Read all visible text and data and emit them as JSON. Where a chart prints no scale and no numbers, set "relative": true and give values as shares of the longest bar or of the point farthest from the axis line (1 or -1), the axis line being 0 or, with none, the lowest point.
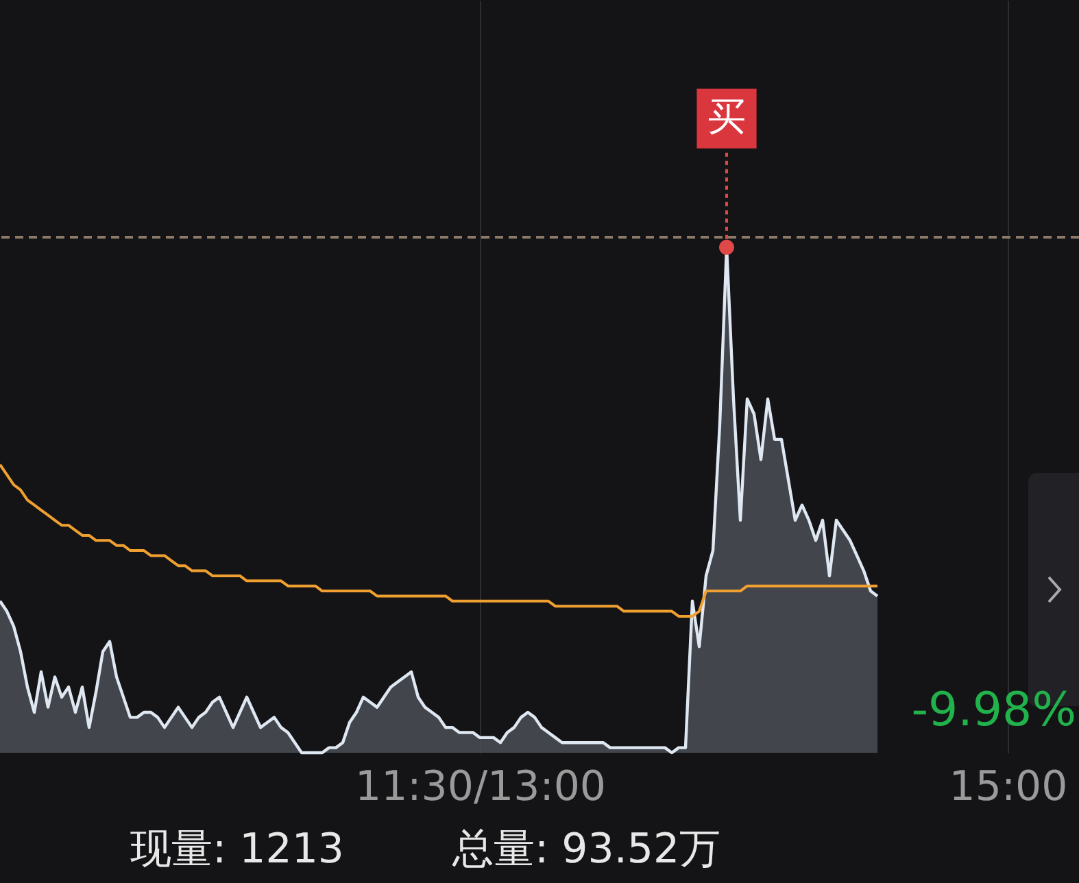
{
  "chart_data": {
    "type": "line",
    "relative": true,
    "grid": "x",
    "categories": [
      null,
      null,
      null,
      null,
      null,
      null,
      null,
      null,
      null,
      null,
      null,
      null,
      null,
      null,
      null,
      null,
      null,
      null,
      null,
      null,
      null,
      null,
      null,
      null,
      null,
      null,
      null,
      null,
      null,
      null,
      null,
      null,
      null,
      null,
      null,
      null,
      null,
      null,
      null,
      null,
      null,
      null,
      null,
      null,
      null,
      null,
      null,
      null,
      null,
      null,
      null,
      null,
      null,
      null,
      null,
      null,
      null,
      null,
      null,
      null,
      null,
      null,
      null,
      null,
      null,
      null,
      null,
      null,
      null,
      null,
      "11:30/13:00",
      null,
      null,
      null,
      null,
      null,
      null,
      null,
      null,
      null,
      null,
      null,
      null,
      null,
      null,
      null,
      null,
      null,
      null,
      null,
      null,
      null,
      null,
      null,
      null,
      null,
      null,
      null,
      null,
      null,
      null,
      null,
      null,
      null,
      null,
      null,
      null,
      null,
      null,
      null,
      null,
      null,
      null,
      null,
      null,
      null,
      null,
      null,
      null,
      null,
      null,
      null,
      null,
      null,
      null,
      null,
      null,
      null,
      null,
      null,
      null,
      null,
      null,
      null,
      null,
      null,
      null,
      null,
      null,
      null,
      null,
      null,
      null,
      null,
      null,
      null,
      null,
      "15:00",
      null,
      null,
      null,
      null,
      null,
      null,
      null,
      null,
      null,
      null
    ],
    "series": [
      {
        "type": "area",
        "color": "#dfe8f2",
        "values": [
          0.3,
          0.28,
          0.25,
          0.2,
          0.13,
          0.08,
          0.16,
          0.09,
          0.15,
          0.11,
          0.13,
          0.08,
          0.13,
          0.05,
          0.12,
          0.2,
          0.22,
          0.15,
          0.11,
          0.07,
          0.07,
          0.08,
          0.08,
          0.07,
          0.05,
          0.07,
          0.09,
          0.07,
          0.05,
          0.07,
          0.08,
          0.1,
          0.11,
          0.08,
          0.05,
          0.08,
          0.11,
          0.08,
          0.05,
          0.06,
          0.07,
          0.05,
          0.04,
          0.02,
          0,
          0,
          0,
          0,
          0.01,
          0.01,
          0.02,
          0.06,
          0.08,
          0.11,
          0.1,
          0.09,
          0.11,
          0.13,
          0.14,
          0.15,
          0.16,
          0.11,
          0.09,
          0.08,
          0.07,
          0.05,
          0.05,
          0.04,
          0.04,
          0.04,
          0.03,
          0.03,
          0.03,
          0.02,
          0.04,
          0.05,
          0.07,
          0.08,
          0.07,
          0.05,
          0.04,
          0.03,
          0.02,
          0.02,
          0.02,
          0.02,
          0.02,
          0.02,
          0.02,
          0.01,
          0.01,
          0.01,
          0.01,
          0.01,
          0.01,
          0.01,
          0.01,
          0.01,
          0,
          0.01,
          0.01,
          0.3,
          0.21,
          0.35,
          0.4,
          0.65,
          1,
          0.7,
          0.46,
          0.7,
          0.67,
          0.58,
          0.7,
          0.62,
          0.62,
          0.54,
          0.46,
          0.49,
          0.46,
          0.42,
          0.46,
          0.35,
          0.46,
          0.44,
          0.42,
          0.39,
          0.36,
          0.32,
          0.31,
          null,
          null,
          null,
          null,
          null,
          null,
          null,
          null,
          null,
          null,
          null,
          null,
          null,
          null,
          null,
          null,
          null,
          null,
          null,
          null,
          null,
          null,
          null,
          null,
          null,
          null,
          null,
          null,
          null
        ]
      },
      {
        "color": "#f0a030",
        "values": [
          0.57,
          0.55,
          0.53,
          0.52,
          0.5,
          0.49,
          0.48,
          0.47,
          0.46,
          0.45,
          0.45,
          0.44,
          0.43,
          0.43,
          0.42,
          0.42,
          0.42,
          0.41,
          0.41,
          0.4,
          0.4,
          0.4,
          0.39,
          0.39,
          0.39,
          0.38,
          0.37,
          0.37,
          0.36,
          0.36,
          0.36,
          0.35,
          0.35,
          0.35,
          0.35,
          0.35,
          0.34,
          0.34,
          0.34,
          0.34,
          0.34,
          0.34,
          0.33,
          0.33,
          0.33,
          0.33,
          0.33,
          0.32,
          0.32,
          0.32,
          0.32,
          0.32,
          0.32,
          0.32,
          0.32,
          0.31,
          0.31,
          0.31,
          0.31,
          0.31,
          0.31,
          0.31,
          0.31,
          0.31,
          0.31,
          0.31,
          0.3,
          0.3,
          0.3,
          0.3,
          0.3,
          0.3,
          0.3,
          0.3,
          0.3,
          0.3,
          0.3,
          0.3,
          0.3,
          0.3,
          0.3,
          0.29,
          0.29,
          0.29,
          0.29,
          0.29,
          0.29,
          0.29,
          0.29,
          0.29,
          0.29,
          0.28,
          0.28,
          0.28,
          0.28,
          0.28,
          0.28,
          0.28,
          0.28,
          0.27,
          0.27,
          0.27,
          0.28,
          0.32,
          0.32,
          0.32,
          0.32,
          0.32,
          0.32,
          0.33,
          0.33,
          0.33,
          0.33,
          0.33,
          0.33,
          0.33,
          0.33,
          0.33,
          0.33,
          0.33,
          0.33,
          0.33,
          0.33,
          0.33,
          0.33,
          0.33,
          0.33,
          0.33,
          0.33,
          null,
          null,
          null,
          null,
          null,
          null,
          null,
          null,
          null,
          null,
          null,
          null,
          null,
          null,
          null,
          null,
          null,
          null,
          null,
          null,
          null,
          null,
          null,
          null,
          null,
          null,
          null,
          null,
          null
        ]
      }
    ],
    "ref_lines": [
      {
        "axis": "y",
        "value": 1.02,
        "color": "#8a7a66",
        "line_style": "dashed"
      }
    ],
    "annotations": [
      {
        "text": "买",
        "y": 1
      },
      "-9.98%",
      "现量: 1213",
      "总量: 93.52万"
    ]
  }
}
